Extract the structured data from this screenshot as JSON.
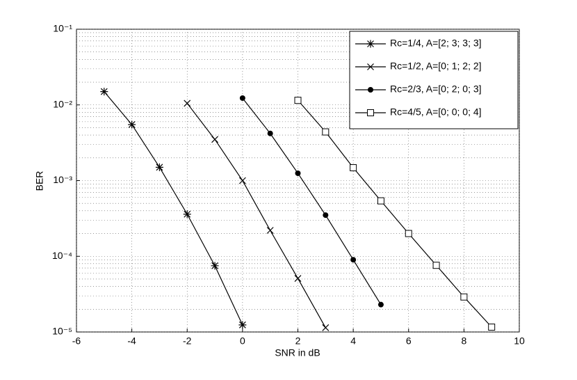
{
  "chart_data": {
    "type": "line",
    "x_label": "SNR in dB",
    "y_label": "BER",
    "xlim": [
      -6,
      10
    ],
    "xticks": [
      -6,
      -4,
      -2,
      0,
      2,
      4,
      6,
      8,
      10
    ],
    "ylim": [
      1e-05,
      0.1
    ],
    "log_y": true,
    "yticks": [
      {
        "value": 1e-05,
        "label": "10⁻⁵"
      },
      {
        "value": 0.0001,
        "label": "10⁻⁴"
      },
      {
        "value": 0.001,
        "label": "10⁻³"
      },
      {
        "value": 0.01,
        "label": "10⁻²"
      },
      {
        "value": 0.1,
        "label": "10⁻¹"
      }
    ],
    "grid": true,
    "legend": "upper right",
    "series": [
      {
        "name": "Rc=1/4, A=[2; 3; 3; 3]",
        "color": "#000000",
        "marker": "asterisk",
        "x": [
          -5,
          -4,
          -3,
          -2,
          -1,
          0
        ],
        "values": [
          0.015,
          0.0055,
          0.0015,
          0.00036,
          7.5e-05,
          1.24e-05
        ]
      },
      {
        "name": "Rc=1/2, A=[0; 1; 2; 2]",
        "color": "#000000",
        "marker": "x",
        "x": [
          -2,
          -1,
          0,
          1,
          2,
          3
        ],
        "values": [
          0.0105,
          0.0035,
          0.001,
          0.00022,
          5.1e-05,
          1.14e-05
        ]
      },
      {
        "name": "Rc=2/3, A=[0; 2; 0; 3]",
        "color": "#000000",
        "marker": "circle",
        "x": [
          0,
          1,
          2,
          3,
          4,
          5
        ],
        "values": [
          0.0123,
          0.0042,
          0.00125,
          0.00035,
          9e-05,
          2.3e-05
        ]
      },
      {
        "name": "Rc=4/5, A=[0; 0; 0; 4]",
        "color": "#000000",
        "marker": "square",
        "x": [
          2,
          3,
          4,
          5,
          6,
          7,
          8,
          9
        ],
        "values": [
          0.0115,
          0.0044,
          0.00148,
          0.00054,
          0.0002,
          7.6e-05,
          2.9e-05,
          1.16e-05
        ]
      }
    ]
  }
}
